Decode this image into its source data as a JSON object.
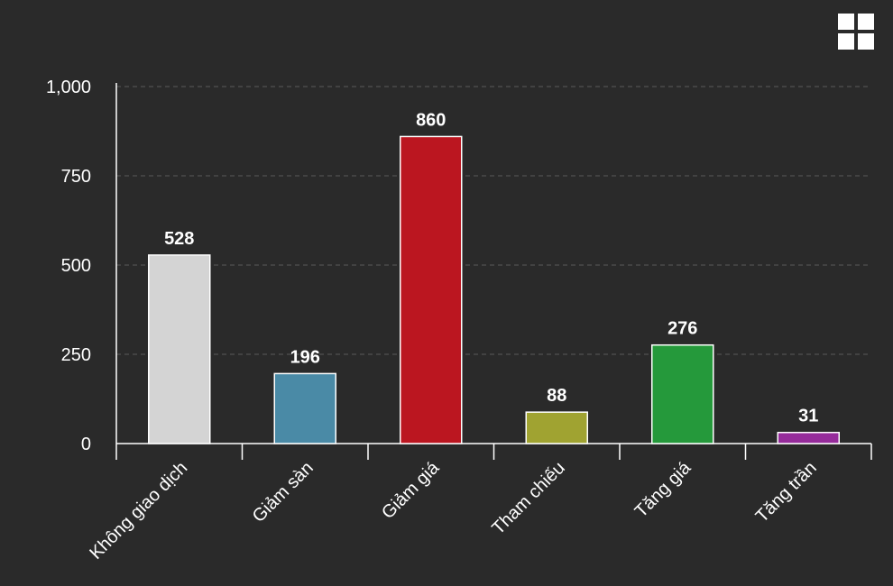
{
  "chart_data": {
    "type": "bar",
    "categories": [
      "Không giao dịch",
      "Giảm sàn",
      "Giảm giá",
      "Tham chiếu",
      "Tăng giá",
      "Tăng trần"
    ],
    "values": [
      528,
      196,
      860,
      88,
      276,
      31
    ],
    "colors": [
      "#d4d4d4",
      "#4a8aa6",
      "#bb1620",
      "#a0a331",
      "#25993b",
      "#962b9b"
    ],
    "title": "",
    "xlabel": "",
    "ylabel": "",
    "ylim": [
      0,
      1000
    ],
    "y_ticks": [
      0,
      250,
      500,
      750,
      1000
    ],
    "y_tick_labels": [
      "0",
      "250",
      "500",
      "750",
      "1,000"
    ],
    "grid": true,
    "legend": "none"
  },
  "toolbar": {
    "menu_icon": "grid-menu-icon"
  }
}
